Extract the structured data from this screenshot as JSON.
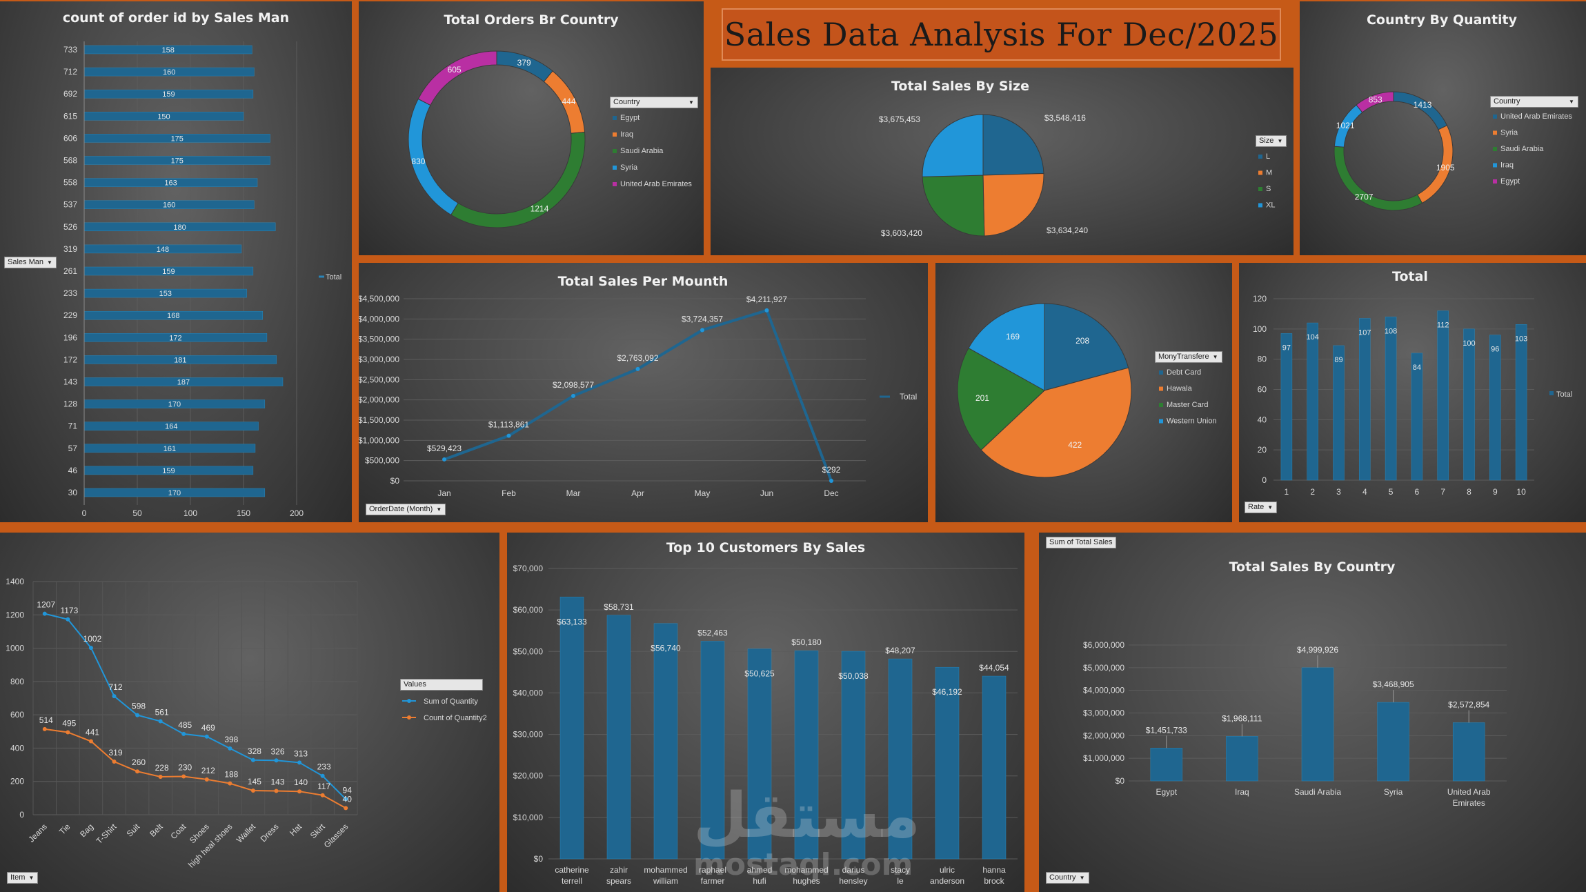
{
  "dashboard": {
    "title": "Sales Data Analysis For Dec/2025"
  },
  "colors": {
    "blue_dark": "#1f6690",
    "orange": "#ed7d31",
    "green": "#2e7d32",
    "light_blue": "#2196d9",
    "magenta": "#b92fa3",
    "background": "#c65a17"
  },
  "salesman": {
    "title": "count of order id by Sales Man",
    "slicer": "Sales Man",
    "legend": "Total",
    "chart_data": {
      "type": "bar",
      "orientation": "horizontal",
      "categories": [
        "733",
        "712",
        "692",
        "615",
        "606",
        "568",
        "558",
        "537",
        "526",
        "319",
        "261",
        "233",
        "229",
        "196",
        "172",
        "143",
        "128",
        "71",
        "57",
        "46",
        "30"
      ],
      "values": [
        158,
        160,
        159,
        150,
        175,
        175,
        163,
        160,
        180,
        148,
        159,
        153,
        168,
        172,
        181,
        187,
        170,
        164,
        161,
        159,
        170
      ],
      "xticks": [
        "0",
        "50",
        "100",
        "150",
        "200"
      ],
      "xlim": [
        0,
        200
      ]
    }
  },
  "orders_country": {
    "title": "Total Orders Br Country",
    "slicer": "Country",
    "chart_data": {
      "type": "pie",
      "donut": true,
      "labels": [
        "Egypt",
        "Iraq",
        "Saudi Arabia",
        "Syria",
        "United Arab Emirates"
      ],
      "values": [
        379,
        444,
        1214,
        830,
        605
      ],
      "colors": [
        "#1f6690",
        "#ed7d31",
        "#2e7d32",
        "#2196d9",
        "#b92fa3"
      ]
    }
  },
  "sales_size": {
    "title": "Total Sales By Size",
    "slicer": "Size",
    "chart_data": {
      "type": "pie",
      "labels": [
        "L",
        "M",
        "S",
        "XL"
      ],
      "values": [
        3548416,
        3634240,
        3603420,
        3675453
      ],
      "value_labels": [
        "$3,548,416",
        "$3,634,240",
        "$3,603,420",
        "$3,675,453"
      ],
      "colors": [
        "#1f6690",
        "#ed7d31",
        "#2e7d32",
        "#2196d9"
      ]
    }
  },
  "country_qty": {
    "title": "Country By Quantity",
    "slicer": "Country",
    "chart_data": {
      "type": "pie",
      "donut": true,
      "labels": [
        "United Arab Emirates",
        "Syria",
        "Saudi Arabia",
        "Iraq",
        "Egypt"
      ],
      "values": [
        1413,
        1905,
        2707,
        1021,
        853
      ],
      "colors": [
        "#1f6690",
        "#ed7d31",
        "#2e7d32",
        "#2196d9",
        "#b92fa3"
      ]
    }
  },
  "monthly": {
    "title": "Total Sales Per Mounth",
    "slicer": "OrderDate (Month)",
    "legend": "Total",
    "chart_data": {
      "type": "line",
      "x": [
        "Jan",
        "Feb",
        "Mar",
        "Apr",
        "May",
        "Jun",
        "Dec"
      ],
      "values": [
        529423,
        1113861,
        2098577,
        2763092,
        3724357,
        4211927,
        292
      ],
      "value_labels": [
        "$529,423",
        "$1,113,861",
        "$2,098,577",
        "$2,763,092",
        "$3,724,357",
        "$4,211,927",
        "$292"
      ],
      "yticks": [
        "$0",
        "$500,000",
        "$1,000,000",
        "$1,500,000",
        "$2,000,000",
        "$2,500,000",
        "$3,000,000",
        "$3,500,000",
        "$4,000,000",
        "$4,500,000"
      ],
      "ylim": [
        0,
        4500000
      ]
    }
  },
  "payment": {
    "slicer": "MonyTransfere",
    "chart_data": {
      "type": "pie",
      "labels": [
        "Debt Card",
        "Hawala",
        "Master Card",
        "Western Union"
      ],
      "values": [
        208,
        422,
        201,
        169
      ],
      "colors": [
        "#1f6690",
        "#ed7d31",
        "#2e7d32",
        "#2196d9"
      ]
    }
  },
  "rate": {
    "title": "Total",
    "slicer": "Rate",
    "legend": "Total",
    "chart_data": {
      "type": "bar",
      "categories": [
        "1",
        "2",
        "3",
        "4",
        "5",
        "6",
        "7",
        "8",
        "9",
        "10"
      ],
      "values": [
        97,
        104,
        89,
        107,
        108,
        84,
        112,
        100,
        96,
        103
      ],
      "yticks": [
        "0",
        "20",
        "40",
        "60",
        "80",
        "100",
        "120"
      ],
      "ylim": [
        0,
        120
      ]
    }
  },
  "items": {
    "slicer": "Item",
    "legend_header": "Values",
    "chart_data": {
      "type": "line",
      "x": [
        "Jeans",
        "Tie",
        "Bag",
        "T-Shirt",
        "Suit",
        "Belt",
        "Coat",
        "Shoes",
        "high heal shoes",
        "Wallet",
        "Dress",
        "Hat",
        "Skirt",
        "Glasses"
      ],
      "series": [
        {
          "name": "Sum of Quantity",
          "values": [
            1207,
            1173,
            1002,
            712,
            598,
            561,
            485,
            469,
            398,
            328,
            326,
            313,
            233,
            94
          ],
          "color": "#2196d9"
        },
        {
          "name": "Count of Quantity2",
          "values": [
            514,
            495,
            441,
            319,
            260,
            228,
            230,
            212,
            188,
            145,
            143,
            140,
            117,
            40
          ],
          "color": "#ed7d31"
        }
      ],
      "yticks": [
        "0",
        "200",
        "400",
        "600",
        "800",
        "1000",
        "1200",
        "1400"
      ],
      "ylim": [
        0,
        1400
      ]
    }
  },
  "customers": {
    "title": "Top 10 Customers By Sales",
    "chart_data": {
      "type": "bar",
      "categories": [
        "catherine terrell",
        "zahir spears",
        "mohammed william",
        "raphael farmer",
        "ahmed hufi",
        "mohammed hughes",
        "darius hensley",
        "stacy le",
        "ulric anderson",
        "hanna brock"
      ],
      "values": [
        63133,
        58731,
        56740,
        52463,
        50625,
        50180,
        50038,
        48207,
        46192,
        44054
      ],
      "value_labels": [
        "$63,133",
        "$58,731",
        "$56,740",
        "$52,463",
        "$50,625",
        "$50,180",
        "$50,038",
        "$48,207",
        "$46,192",
        "$44,054"
      ],
      "yticks": [
        "$0",
        "$10,000",
        "$20,000",
        "$30,000",
        "$40,000",
        "$50,000",
        "$60,000",
        "$70,000"
      ],
      "ylim": [
        0,
        70000
      ]
    }
  },
  "country_sales": {
    "title": "Total Sales By Country",
    "field_button": "Sum of Total Sales",
    "slicer": "Country",
    "chart_data": {
      "type": "bar",
      "categories": [
        "Egypt",
        "Iraq",
        "Saudi Arabia",
        "Syria",
        "United Arab Emirates"
      ],
      "values": [
        1451733,
        1968111,
        4999926,
        3468905,
        2572854
      ],
      "value_labels": [
        "$1,451,733",
        "$1,968,111",
        "$4,999,926",
        "$3,468,905",
        "$2,572,854"
      ],
      "yticks": [
        "$0",
        "$1,000,000",
        "$2,000,000",
        "$3,000,000",
        "$4,000,000",
        "$5,000,000",
        "$6,000,000"
      ],
      "ylim": [
        0,
        6000000
      ]
    }
  },
  "watermark": {
    "arabic": "مستقل",
    "latin": "mostaql.com"
  }
}
